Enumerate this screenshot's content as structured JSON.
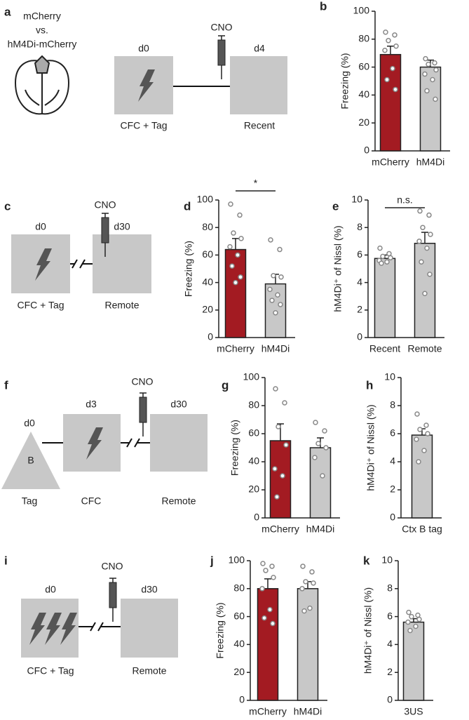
{
  "panel_labels": [
    "a",
    "b",
    "c",
    "d",
    "e",
    "f",
    "g",
    "h",
    "i",
    "j",
    "k"
  ],
  "schematics": [
    {
      "title_lines": [
        "mCherry",
        "vs.",
        "hM4Di-mCherry"
      ],
      "days": [
        "d0",
        "d4"
      ],
      "drug": "CNO",
      "sessions": [
        "CFC + Tag",
        "Recent"
      ]
    },
    {
      "days": [
        "d0",
        "d30"
      ],
      "drug": "CNO",
      "sessions": [
        "CFC + Tag",
        "Remote"
      ]
    },
    {
      "days": [
        "d0",
        "d3",
        "d30"
      ],
      "context": "B",
      "drug": "CNO",
      "sessions": [
        "Tag",
        "CFC",
        "Remote"
      ]
    },
    {
      "days": [
        "d0",
        "d30"
      ],
      "drug": "CNO",
      "sessions": [
        "CFC + Tag",
        "Remote"
      ]
    }
  ],
  "chart_data": [
    {
      "type": "bar",
      "ylabel": "Freezing (%)",
      "categories": [
        "mCherry",
        "hM4Di"
      ],
      "values": [
        69,
        60
      ],
      "errors": [
        6,
        5
      ],
      "colors": [
        "#a31b22",
        "#c8c8c8"
      ],
      "points": [
        [
          85,
          83,
          79,
          75,
          72,
          59,
          51,
          44
        ],
        [
          66,
          63,
          62,
          58,
          55,
          51,
          43,
          37
        ]
      ],
      "ylim": [
        0,
        100
      ],
      "yticks": [
        0,
        20,
        40,
        60,
        80,
        100
      ]
    },
    {
      "type": "bar",
      "ylabel": "Freezing (%)",
      "categories": [
        "mCherry",
        "hM4Di"
      ],
      "values": [
        64,
        39
      ],
      "errors": [
        8,
        7
      ],
      "colors": [
        "#a31b22",
        "#c8c8c8"
      ],
      "points": [
        [
          97,
          89,
          76,
          72,
          66,
          60,
          52,
          44,
          40
        ],
        [
          71,
          64,
          45,
          44,
          35,
          31,
          27,
          24,
          18
        ]
      ],
      "ylim": [
        0,
        100
      ],
      "yticks": [
        0,
        20,
        40,
        60,
        80,
        100
      ],
      "annotation": "*"
    },
    {
      "type": "bar",
      "ylabel": "hM4Di⁺ of Nissl (%)",
      "categories": [
        "Recent",
        "Remote"
      ],
      "values": [
        5.75,
        6.85
      ],
      "errors": [
        0.25,
        0.8
      ],
      "colors": [
        "#c8c8c8",
        "#c8c8c8"
      ],
      "points": [
        [
          6.5,
          6.1,
          5.9,
          5.8,
          5.6,
          5.5,
          5.4
        ],
        [
          9.2,
          8.9,
          8.0,
          7.5,
          7.0,
          6.5,
          5.5,
          4.6,
          3.2
        ]
      ],
      "ylim": [
        0,
        10
      ],
      "yticks": [
        0,
        2,
        4,
        6,
        8,
        10
      ],
      "annotation": "n.s."
    },
    {
      "type": "bar",
      "ylabel": "Freezing (%)",
      "categories": [
        "mCherry",
        "hM4Di"
      ],
      "values": [
        55,
        50
      ],
      "errors": [
        12,
        7
      ],
      "colors": [
        "#a31b22",
        "#c8c8c8"
      ],
      "points": [
        [
          92,
          82,
          65,
          52,
          35,
          30,
          15
        ],
        [
          68,
          62,
          53,
          50,
          43,
          30
        ]
      ],
      "ylim": [
        0,
        100
      ],
      "yticks": [
        0,
        20,
        40,
        60,
        80,
        100
      ]
    },
    {
      "type": "bar",
      "ylabel": "hM4Di⁺ of Nissl (%)",
      "categories": [
        "Ctx B tag"
      ],
      "values": [
        5.9
      ],
      "errors": [
        0.45
      ],
      "colors": [
        "#c8c8c8"
      ],
      "points": [
        [
          7.4,
          6.6,
          6.3,
          6.0,
          5.6,
          4.8,
          4.0
        ]
      ],
      "ylim": [
        0,
        10
      ],
      "yticks": [
        0,
        2,
        4,
        6,
        8,
        10
      ]
    },
    {
      "type": "bar",
      "ylabel": "Freezing (%)",
      "categories": [
        "mCherry",
        "hM4Di"
      ],
      "values": [
        80,
        80
      ],
      "errors": [
        7,
        5
      ],
      "colors": [
        "#a31b22",
        "#c8c8c8"
      ],
      "points": [
        [
          98,
          96,
          93,
          88,
          80,
          65,
          59,
          55
        ],
        [
          96,
          92,
          85,
          84,
          80,
          66,
          64
        ]
      ],
      "ylim": [
        0,
        100
      ],
      "yticks": [
        0,
        20,
        40,
        60,
        80,
        100
      ]
    },
    {
      "type": "bar",
      "ylabel": "hM4Di⁺ of Nissl (%)",
      "categories": [
        "3US"
      ],
      "values": [
        5.6
      ],
      "errors": [
        0.25
      ],
      "colors": [
        "#c8c8c8"
      ],
      "points": [
        [
          6.3,
          6.1,
          6.0,
          5.8,
          5.6,
          5.3,
          5.0
        ]
      ],
      "ylim": [
        0,
        10
      ],
      "yticks": [
        0,
        2,
        4,
        6,
        8,
        10
      ]
    }
  ]
}
